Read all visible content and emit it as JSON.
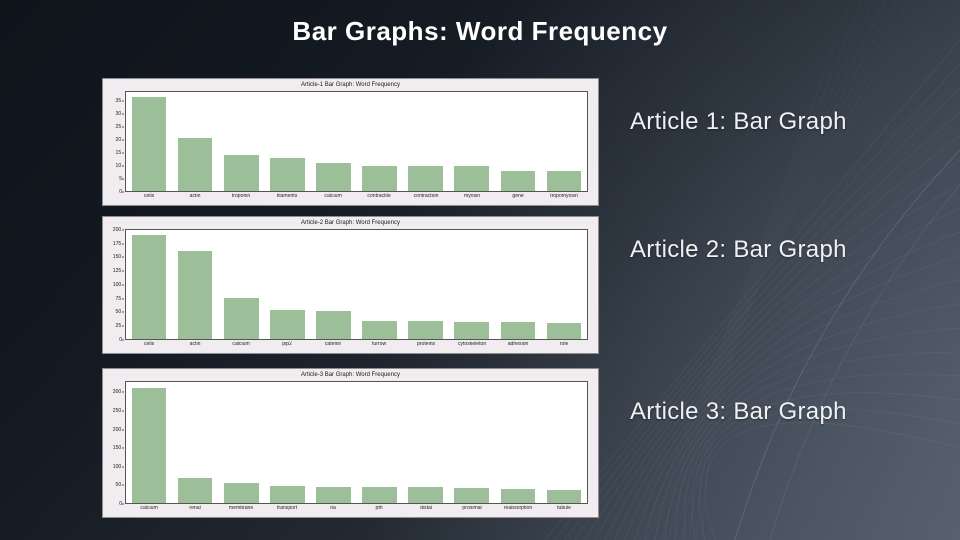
{
  "slide": {
    "title": "Bar Graphs: Word Frequency",
    "labels": [
      "Article 1: Bar Graph",
      "Article 2: Bar Graph",
      "Article 3: Bar Graph"
    ]
  },
  "colors": {
    "bar_fill": "#9cbe98",
    "figure_bg": "#f1ecf0",
    "plot_bg": "#ffffff",
    "slide_bg_dark": "#0f141b",
    "slide_bg_light": "#49525e",
    "title_text": "#ffffff",
    "label_text": "#eef1f4"
  },
  "chart_data": [
    {
      "type": "bar",
      "title": "Article-1 Bar Graph: Word Frequency",
      "categories": [
        "cells",
        "actin",
        "troponin",
        "filaments",
        "calcium",
        "contractile",
        "contraction",
        "myosin",
        "gene",
        "tropomyosin"
      ],
      "values": [
        37,
        21,
        14,
        13,
        11,
        10,
        10,
        10,
        8,
        8
      ],
      "xlabel": "",
      "ylabel": "",
      "yticks": [
        0,
        5,
        10,
        15,
        20,
        25,
        30,
        35
      ],
      "ylim": [
        0,
        38.9
      ],
      "grid": false,
      "legend": "none"
    },
    {
      "type": "bar",
      "title": "Article-2 Bar Graph: Word Frequency",
      "categories": [
        "cells",
        "actin",
        "calcium",
        "pip2",
        "catenin",
        "furrow",
        "proteins",
        "cytoskeleton",
        "adhesion",
        "role"
      ],
      "values": [
        192,
        163,
        75,
        53,
        51,
        34,
        33,
        32,
        31,
        30
      ],
      "xlabel": "",
      "ylabel": "",
      "yticks": [
        0,
        25,
        50,
        75,
        100,
        125,
        150,
        175,
        200
      ],
      "ylim": [
        0,
        201.6
      ],
      "grid": false,
      "legend": "none"
    },
    {
      "type": "bar",
      "title": "Article-3 Bar Graph: Word Frequency",
      "categories": [
        "calcium",
        "renal",
        "membrane",
        "transport",
        "na",
        "pth",
        "distal",
        "proximal",
        "reabsorption",
        "tubule"
      ],
      "values": [
        315,
        68,
        54,
        46,
        44,
        45,
        43,
        41,
        39,
        35
      ],
      "xlabel": "",
      "ylabel": "",
      "yticks": [
        0,
        50,
        100,
        150,
        200,
        250,
        300
      ],
      "ylim": [
        0,
        330.8
      ],
      "grid": false,
      "legend": "none"
    }
  ]
}
